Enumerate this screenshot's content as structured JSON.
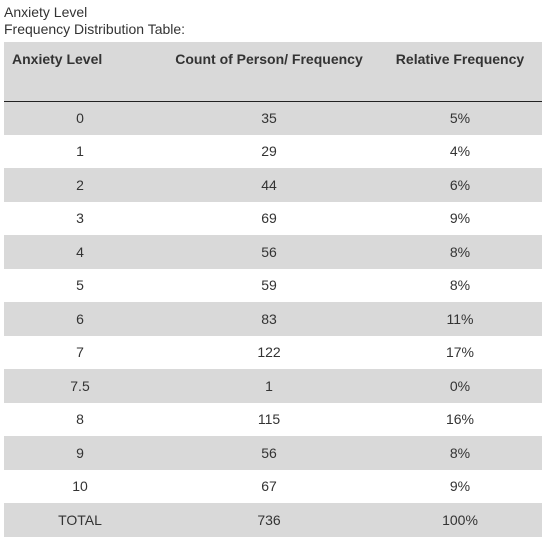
{
  "caption": {
    "line1": "Anxiety Level",
    "line2": "Frequency Distribution Table:"
  },
  "table": {
    "headers": [
      "Anxiety Level",
      "Count of Person/ Frequency",
      "Relative Frequency"
    ],
    "rows": [
      [
        "0",
        "35",
        "5%"
      ],
      [
        "1",
        "29",
        "4%"
      ],
      [
        "2",
        "44",
        "6%"
      ],
      [
        "3",
        "69",
        "9%"
      ],
      [
        "4",
        "56",
        "8%"
      ],
      [
        "5",
        "59",
        "8%"
      ],
      [
        "6",
        "83",
        "11%"
      ],
      [
        "7",
        "122",
        "17%"
      ],
      [
        "7.5",
        "1",
        "0%"
      ],
      [
        "8",
        "115",
        "16%"
      ],
      [
        "9",
        "56",
        "8%"
      ],
      [
        "10",
        "67",
        "9%"
      ],
      [
        "TOTAL",
        "736",
        "100%"
      ]
    ]
  },
  "colors": {
    "row_shade": "#d9d9d9",
    "row_plain": "#ffffff",
    "text": "#333333"
  }
}
